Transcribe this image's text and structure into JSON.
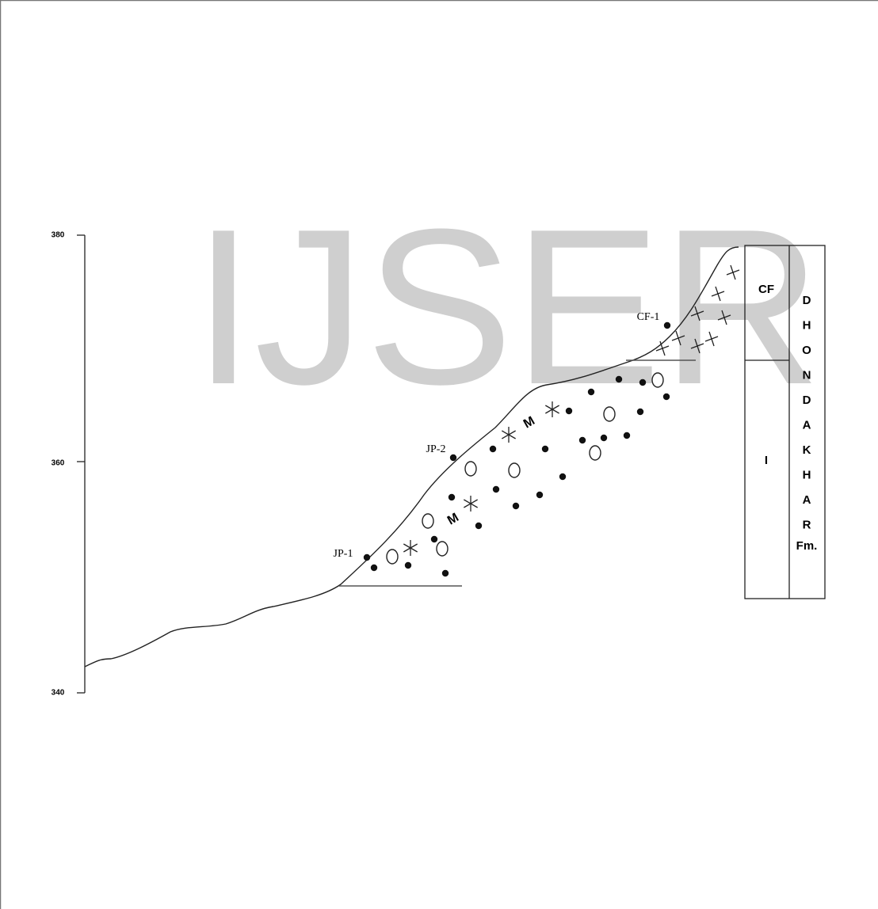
{
  "watermark": "IJSER",
  "axis": {
    "ticks": [
      "380",
      "360",
      "340"
    ]
  },
  "stations": [
    "JP-1",
    "JP-2",
    "CF-1"
  ],
  "lithology_marks": [
    "M",
    "M"
  ],
  "column": {
    "units": [
      "CF",
      "I"
    ],
    "formation": [
      "D",
      "H",
      "O",
      "N",
      "D",
      "A",
      "K",
      "H",
      "A",
      "R",
      "Fm."
    ]
  }
}
